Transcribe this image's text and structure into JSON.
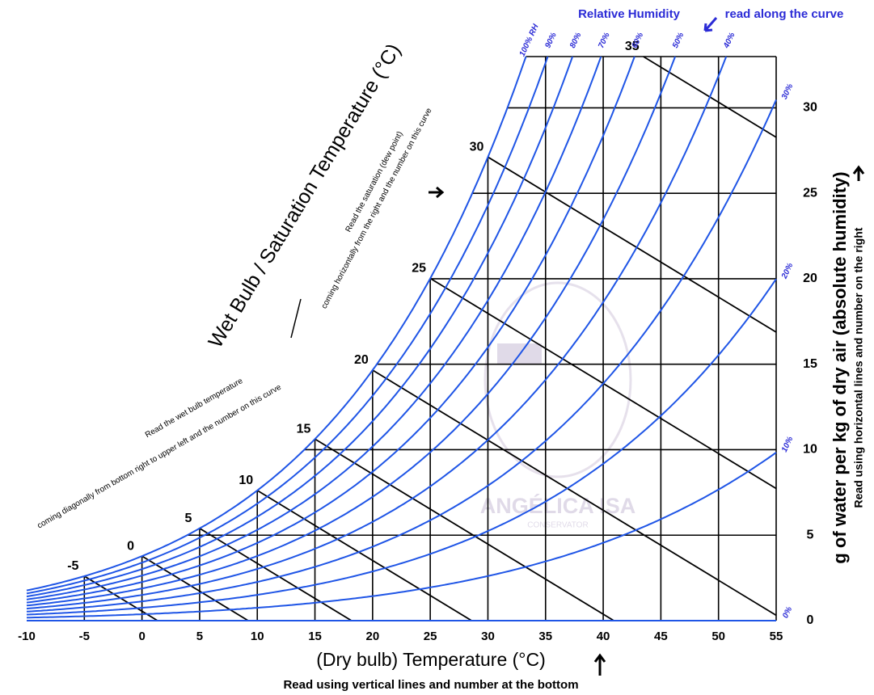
{
  "chart_data": {
    "type": "psychrometric",
    "rh_title": "Relative Humidity",
    "rh_note": "read along the curve",
    "xlabel": "(Dry bulb) Temperature (°C)",
    "xnote": "Read using vertical lines and number at the bottom",
    "ylabel": "g of water per kg of dry air (absolute humidity)",
    "ynote": "Read using horizontal lines and number on the right",
    "wet_bulb_title": "Wet Bulb / Saturation Temperature (°C)",
    "wet_bulb_notes": [
      "Read the wet bulb temperature",
      "coming diagonally from bottom right to upper left and the number on this curve"
    ],
    "dew_point_notes": [
      "Read the saturation (dew point)",
      "coming horizontally from the right and the number on this curve"
    ],
    "watermark": [
      "ANGÉLICA ISA",
      "CONSERVATOR"
    ],
    "xlim": [
      -10,
      55
    ],
    "xticks": [
      -10,
      -5,
      0,
      5,
      10,
      15,
      20,
      25,
      30,
      35,
      40,
      45,
      50,
      55
    ],
    "ylim": [
      0,
      33
    ],
    "yticks": [
      0,
      5,
      10,
      15,
      20,
      25,
      30
    ],
    "rh_curves": [
      {
        "value": 100,
        "label": "100% RH"
      },
      {
        "value": 90,
        "label": "90%"
      },
      {
        "value": 80,
        "label": "80%"
      },
      {
        "value": 70,
        "label": "70%"
      },
      {
        "value": 60,
        "label": "60%"
      },
      {
        "value": 50,
        "label": "50%"
      },
      {
        "value": 40,
        "label": "40%"
      },
      {
        "value": 30,
        "label": "30%"
      },
      {
        "value": 20,
        "label": "20%"
      },
      {
        "value": 10,
        "label": "10%"
      },
      {
        "value": 0,
        "label": "0%"
      }
    ],
    "wet_bulb_lines": [
      -5,
      0,
      5,
      10,
      15,
      20,
      25,
      30,
      35
    ],
    "curve_color": "#1f55e6",
    "label_color": "#2b2bd6",
    "grid_color": "#000000"
  }
}
